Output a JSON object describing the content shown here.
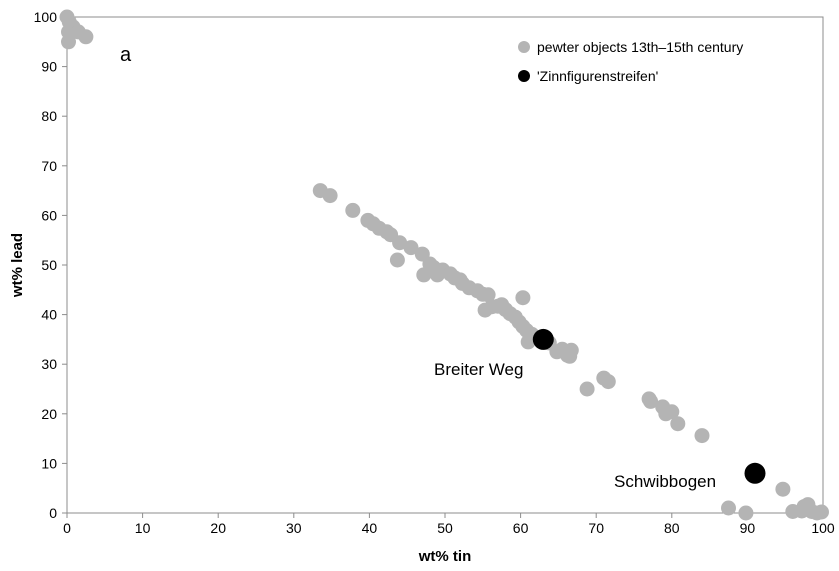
{
  "chart_data": {
    "type": "scatter",
    "xlabel": "wt% tin",
    "ylabel": "wt% lead",
    "panel_label": "a",
    "xlim": [
      0,
      100
    ],
    "ylim": [
      0,
      100
    ],
    "x_ticks": [
      "0",
      "10",
      "20",
      "30",
      "40",
      "50",
      "60",
      "70",
      "80",
      "90",
      "100"
    ],
    "y_ticks": [
      "0",
      "10",
      "20",
      "30",
      "40",
      "50",
      "60",
      "70",
      "80",
      "90",
      "100"
    ],
    "grid": false,
    "legend_position": "top-right",
    "series": [
      {
        "name": "pewter objects 13th–15th century",
        "color": "#b4b4b4",
        "points": [
          [
            0,
            100
          ],
          [
            0.3,
            99
          ],
          [
            0.2,
            97
          ],
          [
            0.8,
            98
          ],
          [
            1.5,
            97
          ],
          [
            2.5,
            96
          ],
          [
            0.2,
            95
          ],
          [
            33.5,
            65
          ],
          [
            34.8,
            64
          ],
          [
            37.8,
            61
          ],
          [
            39.8,
            59
          ],
          [
            40.5,
            58.3
          ],
          [
            41.3,
            57.4
          ],
          [
            42.3,
            56.7
          ],
          [
            42.8,
            56.1
          ],
          [
            44,
            54.5
          ],
          [
            43.7,
            51
          ],
          [
            45.5,
            53.5
          ],
          [
            47,
            52.2
          ],
          [
            47.2,
            48
          ],
          [
            48,
            50.2
          ],
          [
            48.5,
            49.5
          ],
          [
            49,
            48
          ],
          [
            49.7,
            49
          ],
          [
            50.7,
            48.2
          ],
          [
            51.3,
            47.4
          ],
          [
            52,
            47
          ],
          [
            52.3,
            46.3
          ],
          [
            53.2,
            45.4
          ],
          [
            54.3,
            44.8
          ],
          [
            55,
            44.1
          ],
          [
            55.7,
            44
          ],
          [
            55.3,
            40.9
          ],
          [
            56.2,
            41.6
          ],
          [
            57,
            41.7
          ],
          [
            57.5,
            42
          ],
          [
            58,
            41
          ],
          [
            58.6,
            40.2
          ],
          [
            59.3,
            39.5
          ],
          [
            59.8,
            38.5
          ],
          [
            60.3,
            43.4
          ],
          [
            60.3,
            37.6
          ],
          [
            60.8,
            36.8
          ],
          [
            61,
            34.5
          ],
          [
            61.5,
            36
          ],
          [
            62,
            35.3
          ],
          [
            63.8,
            34.3
          ],
          [
            64.8,
            32.5
          ],
          [
            65.5,
            33
          ],
          [
            66.2,
            31.8
          ],
          [
            66.7,
            32.8
          ],
          [
            66.5,
            31.6
          ],
          [
            68.8,
            25
          ],
          [
            71,
            27.2
          ],
          [
            71.6,
            26.5
          ],
          [
            77.2,
            22.5
          ],
          [
            77,
            23
          ],
          [
            78.8,
            21.4
          ],
          [
            79.2,
            20
          ],
          [
            80,
            20.4
          ],
          [
            80.8,
            18
          ],
          [
            84,
            15.6
          ],
          [
            87.5,
            1
          ],
          [
            89.8,
            0
          ],
          [
            94.7,
            4.8
          ],
          [
            96,
            0.3
          ],
          [
            97.2,
            0.4
          ],
          [
            97.5,
            1.3
          ],
          [
            98,
            1.7
          ],
          [
            98.5,
            0.3
          ],
          [
            99.2,
            0
          ],
          [
            99.8,
            0.2
          ]
        ]
      },
      {
        "name": "'Zinnfigurenstreifen'",
        "color": "#000000",
        "points": [
          [
            63,
            35
          ],
          [
            91,
            8
          ]
        ]
      }
    ],
    "annotations": [
      {
        "text": "Breiter Weg",
        "x": 63,
        "y": 35
      },
      {
        "text": "Schwibbogen",
        "x": 91,
        "y": 8
      }
    ]
  }
}
